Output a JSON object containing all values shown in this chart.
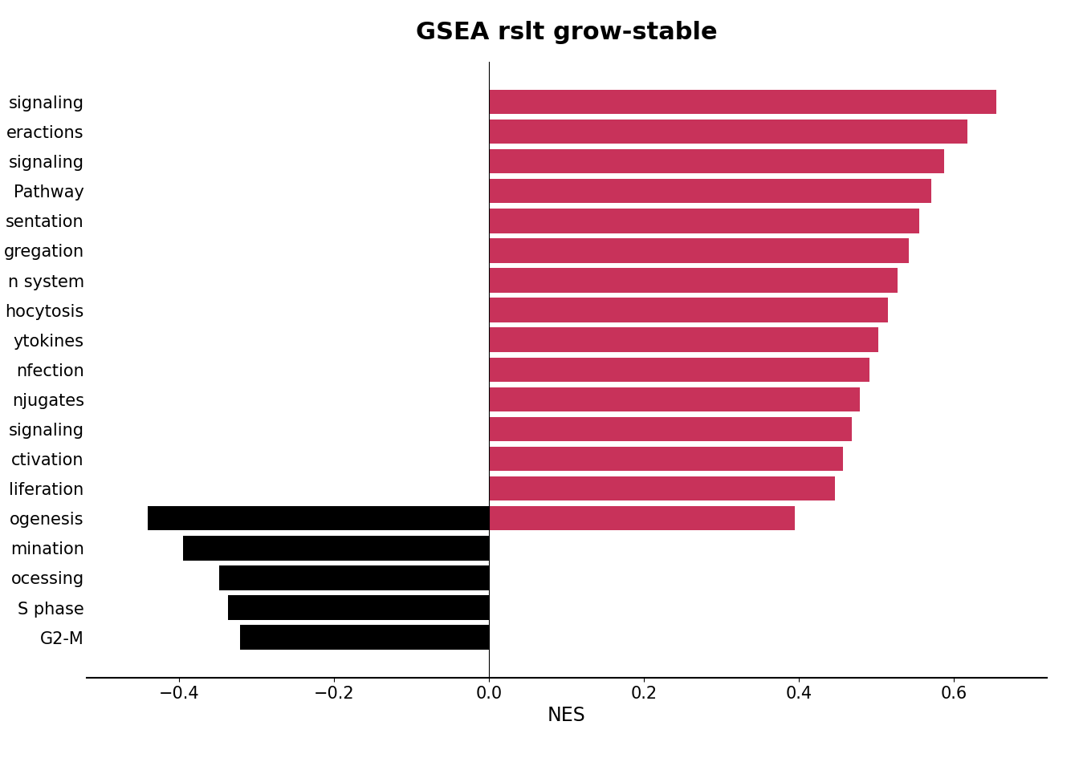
{
  "title": "GSEA rslt grow-stable",
  "xlabel": "NES",
  "positive_color": "#C8325A",
  "negative_color": "#000000",
  "background_color": "#ffffff",
  "title_fontsize": 22,
  "tick_fontsize": 15,
  "axis_label_fontsize": 17,
  "all_labels": [
    "signaling",
    "eractions",
    "signaling",
    "Pathway",
    "sentation",
    "gregation",
    "n system",
    "hocytosis",
    "ytokines",
    "nfection",
    "njugates",
    "signaling",
    "ctivation",
    "liferation",
    "ogenesis",
    "mination",
    "ocessing",
    "S phase",
    "G2-M"
  ],
  "positive_values": [
    0.655,
    0.618,
    0.588,
    0.571,
    0.556,
    0.542,
    0.528,
    0.515,
    0.503,
    0.491,
    0.479,
    0.468,
    0.457,
    0.447,
    0.395,
    0.0,
    0.0,
    0.0,
    0.0
  ],
  "negative_values": [
    0.0,
    0.0,
    0.0,
    0.0,
    0.0,
    0.0,
    0.0,
    0.0,
    0.0,
    0.0,
    0.0,
    0.0,
    0.0,
    0.0,
    -0.441,
    -0.395,
    -0.348,
    -0.337,
    -0.322
  ]
}
